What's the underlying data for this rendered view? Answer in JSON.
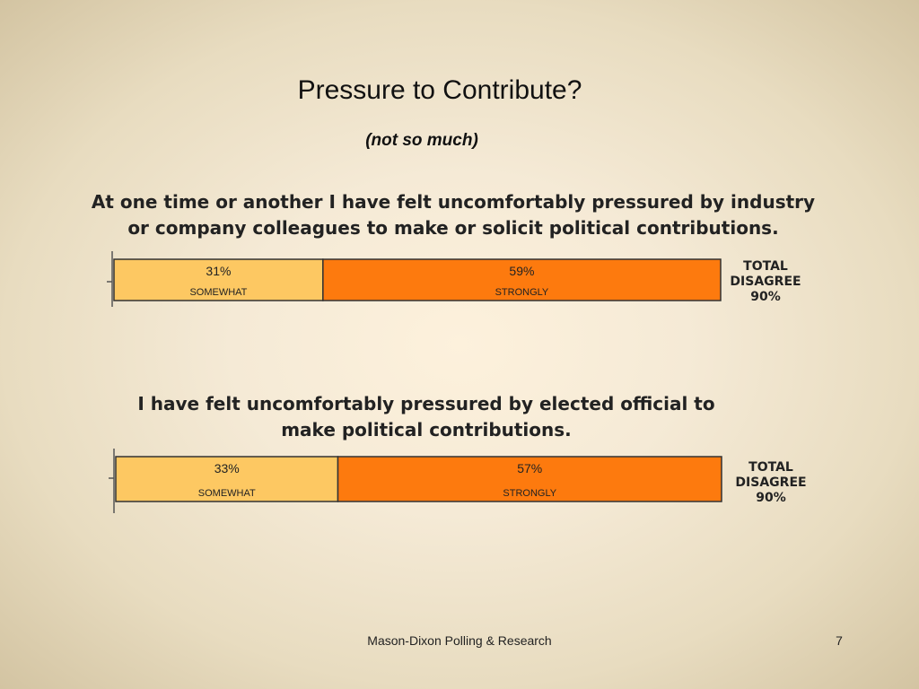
{
  "slide": {
    "title": "Pressure to Contribute?",
    "subtitle": "(not so much)",
    "footer": "Mason-Dixon Polling & Research",
    "page_number": "7"
  },
  "chart_data": [
    {
      "type": "bar",
      "orientation": "horizontal-stacked",
      "title": "At one time or another I have felt uncomfortably pressured by industry or company colleagues to make or solicit political contributions.",
      "series": [
        {
          "name": "SOMEWHAT",
          "value": 31,
          "label": "31%",
          "color": "#fdc862"
        },
        {
          "name": "STRONGLY",
          "value": 59,
          "label": "59%",
          "color": "#fd7a0e"
        }
      ],
      "total_label": [
        "TOTAL",
        "DISAGREE",
        "90%"
      ],
      "xlim": [
        0,
        90
      ]
    },
    {
      "type": "bar",
      "orientation": "horizontal-stacked",
      "title": "I have felt uncomfortably pressured by elected official to make political contributions.",
      "series": [
        {
          "name": "SOMEWHAT",
          "value": 33,
          "label": "33%",
          "color": "#fdc862"
        },
        {
          "name": "STRONGLY",
          "value": 57,
          "label": "57%",
          "color": "#fd7a0e"
        }
      ],
      "total_label": [
        "TOTAL",
        "DISAGREE",
        "90%"
      ],
      "xlim": [
        0,
        90
      ]
    }
  ]
}
